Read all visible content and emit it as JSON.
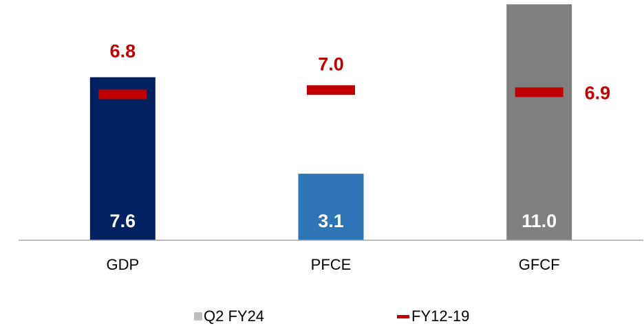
{
  "chart_data": {
    "type": "bar",
    "categories": [
      "GDP",
      "PFCE",
      "GFCF"
    ],
    "series": [
      {
        "name": "Q2 FY24",
        "color": "#bfbfbf",
        "colors": [
          "#002060",
          "#2e75b6",
          "#808080"
        ],
        "values": [
          7.6,
          3.1,
          11.0
        ],
        "value_labels": [
          "7.6",
          "3.1",
          "11.0"
        ]
      },
      {
        "name": "FY12-19",
        "color": "#c00000",
        "values": [
          6.8,
          7.0,
          6.9
        ],
        "value_labels": [
          "6.8",
          "7.0",
          "6.9"
        ]
      }
    ],
    "ylim": [
      0,
      11.2
    ]
  }
}
